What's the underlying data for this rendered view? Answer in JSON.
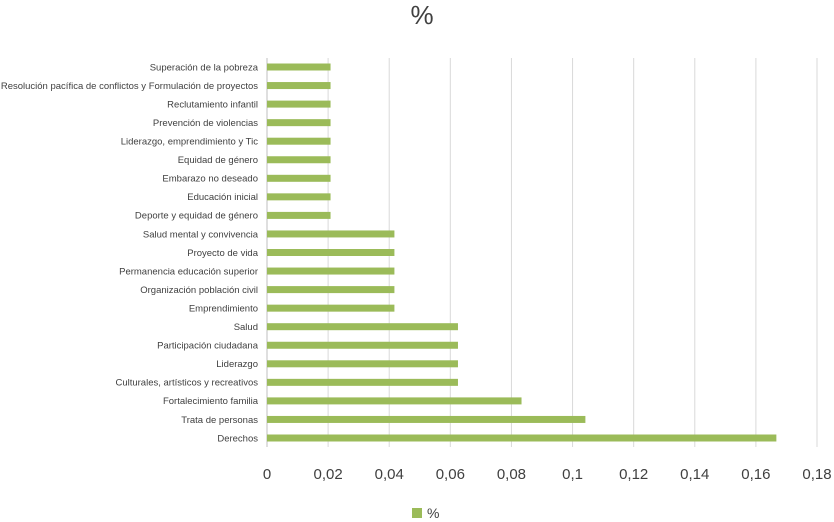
{
  "chart_data": {
    "type": "bar",
    "orientation": "horizontal",
    "title": "%",
    "xlabel": "",
    "ylabel": "",
    "xlim": [
      0,
      0.18
    ],
    "x_ticks": [
      0,
      0.02,
      0.04,
      0.06,
      0.08,
      0.1,
      0.12,
      0.14,
      0.16,
      0.18
    ],
    "x_tick_labels": [
      "0",
      "0,02",
      "0,04",
      "0,06",
      "0,08",
      "0,1",
      "0,12",
      "0,14",
      "0,16",
      "0,18"
    ],
    "grid": "vertical",
    "legend_position": "bottom",
    "categories": [
      "Superación de la pobreza",
      "Resolución pacífica de conflictos y Formulación de proyectos",
      "Reclutamiento infantil",
      "Prevención de violencias",
      "Liderazgo, emprendimiento y Tic",
      "Equidad de género",
      "Embarazo no deseado",
      "Educación inicial",
      "Deporte y equidad de género",
      "Salud mental y convivencia",
      "Proyecto de vida",
      "Permanencia educación superior",
      "Organización población civil",
      "Emprendimiento",
      "Salud",
      "Participación ciudadana",
      "Liderazgo",
      "Culturales, artísticos y recreativos",
      "Fortalecimiento familia",
      "Trata de personas",
      "Derechos"
    ],
    "series": [
      {
        "name": "%",
        "color": "#9bbb59",
        "values": [
          0.0208,
          0.0208,
          0.0208,
          0.0208,
          0.0208,
          0.0208,
          0.0208,
          0.0208,
          0.0208,
          0.0417,
          0.0417,
          0.0417,
          0.0417,
          0.0417,
          0.0625,
          0.0625,
          0.0625,
          0.0625,
          0.0833,
          0.1042,
          0.1667
        ]
      }
    ]
  }
}
